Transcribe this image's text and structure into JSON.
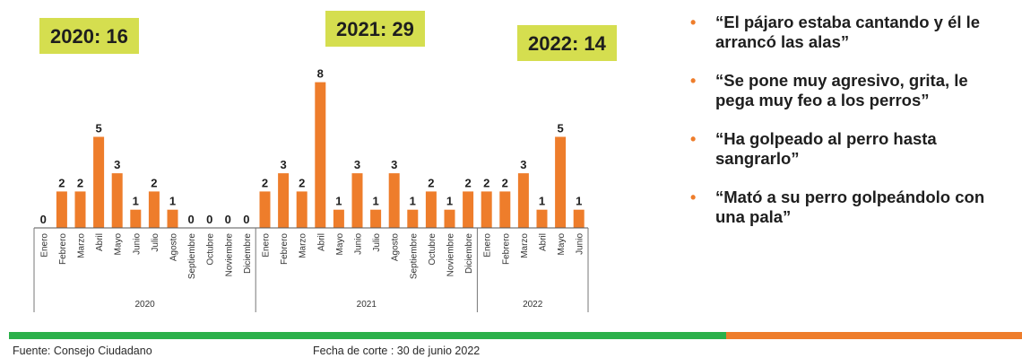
{
  "chart_data": {
    "type": "bar",
    "groups": [
      {
        "year_label": "2020",
        "badge": "2020: 16",
        "months": [
          "Enero",
          "Febrero",
          "Marzo",
          "Abril",
          "Mayo",
          "Junio",
          "Julio",
          "Agosto",
          "Septiembre",
          "Octubre",
          "Noviembre",
          "Diciembre"
        ],
        "values": [
          0,
          2,
          2,
          5,
          3,
          1,
          2,
          1,
          0,
          0,
          0,
          0
        ]
      },
      {
        "year_label": "2021",
        "badge": "2021: 29",
        "months": [
          "Enero",
          "Febrero",
          "Marzo",
          "Abril",
          "Mayo",
          "Junio",
          "Julio",
          "Agosto",
          "Septiembre",
          "Octubre",
          "Noviembre",
          "Diciembre"
        ],
        "values": [
          2,
          3,
          2,
          8,
          1,
          3,
          1,
          3,
          1,
          2,
          1,
          2
        ]
      },
      {
        "year_label": "2022",
        "badge": "2022: 14",
        "months": [
          "Enero",
          "Febrero",
          "Marzo",
          "Abril",
          "Mayo",
          "Junio"
        ],
        "values": [
          2,
          2,
          3,
          1,
          5,
          1
        ]
      }
    ],
    "ylim": [
      0,
      8
    ],
    "bar_color": "#ee7d2b"
  },
  "quotes": [
    "“El pájaro estaba cantando y él le arrancó las alas”",
    "“Se pone muy agresivo, grita, le pega muy feo a los perros”",
    "“Ha golpeado al perro hasta sangrarlo”",
    "“Mató a su perro golpeándolo con una pala”"
  ],
  "footer": {
    "source": "Fuente: Consejo Ciudadano",
    "cutoff": "Fecha de corte : 30 de junio 2022"
  },
  "colors": {
    "badge": "#d5de4f",
    "bar": "#ee7d2b",
    "line_green": "#2bb04a",
    "line_orange": "#ee7d2b"
  }
}
